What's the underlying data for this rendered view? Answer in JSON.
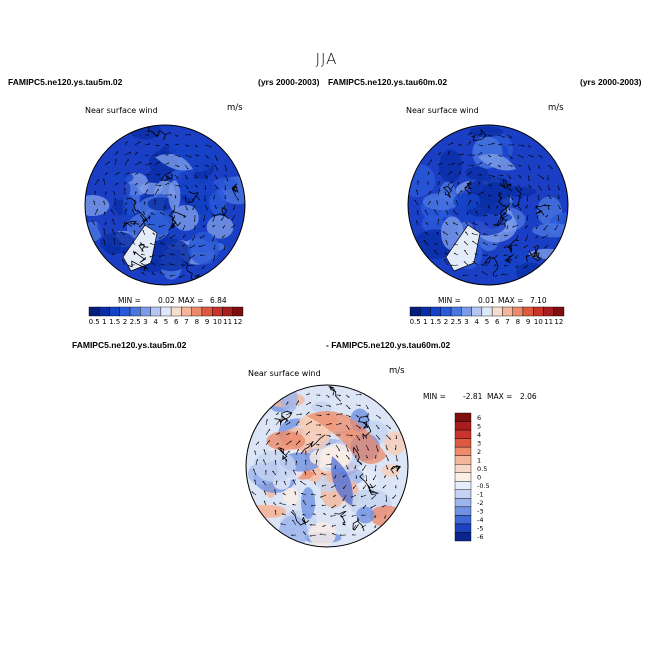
{
  "title": "JJA",
  "panels": [
    {
      "case_label": "FAMIPC5.ne120.ys.tau5m.02",
      "years_label": "(yrs 2000-2003)",
      "var_label": "Near surface wind",
      "units": "m/s",
      "min_label": "MIN =",
      "min_value": "0.02",
      "max_label": "MAX =",
      "max_value": "6.84"
    },
    {
      "case_label": "FAMIPC5.ne120.ys.tau60m.02",
      "years_label": "(yrs 2000-2003)",
      "var_label": "Near surface wind",
      "units": "m/s",
      "min_label": "MIN =",
      "min_value": "0.01",
      "max_label": "MAX =",
      "max_value": "7.10"
    },
    {
      "case_label": "FAMIPC5.ne120.ys.tau5m.02",
      "case_label_b": "- FAMIPC5.ne120.ys.tau60m.02",
      "var_label": "Near surface wind",
      "units": "m/s",
      "min_label": "MIN =",
      "min_value": "-2.81",
      "max_label": "MAX =",
      "max_value": "2.06"
    }
  ],
  "chart_data": [
    {
      "type": "heatmap",
      "title": "FAMIPC5.ne120.ys.tau5m.02",
      "subtitle": "Near surface wind",
      "units": "m/s",
      "min": 0.02,
      "max": 6.84,
      "colorbar_levels": [
        "0.5",
        "1",
        "1.5",
        "2",
        "2.5",
        "3",
        "4",
        "5",
        "6",
        "7",
        "8",
        "9",
        "10",
        "11",
        "12"
      ],
      "colorbar_colors": [
        "#081d7a",
        "#0a2ea6",
        "#1543c8",
        "#2b5ad8",
        "#4a76e0",
        "#7d9ce8",
        "#b3c6f1",
        "#dfe8f8",
        "#f6ddcf",
        "#f4b79c",
        "#ec8a6a",
        "#dd5a40",
        "#c9342a",
        "#a81d1d",
        "#7d0f0f"
      ]
    },
    {
      "type": "heatmap",
      "title": "FAMIPC5.ne120.ys.tau60m.02",
      "subtitle": "Near surface wind",
      "units": "m/s",
      "min": 0.01,
      "max": 7.1,
      "colorbar_levels": [
        "0.5",
        "1",
        "1.5",
        "2",
        "2.5",
        "3",
        "4",
        "5",
        "6",
        "7",
        "8",
        "9",
        "10",
        "11",
        "12"
      ],
      "colorbar_colors": [
        "#081d7a",
        "#0a2ea6",
        "#1543c8",
        "#2b5ad8",
        "#4a76e0",
        "#7d9ce8",
        "#b3c6f1",
        "#dfe8f8",
        "#f6ddcf",
        "#f4b79c",
        "#ec8a6a",
        "#dd5a40",
        "#c9342a",
        "#a81d1d",
        "#7d0f0f"
      ]
    },
    {
      "type": "heatmap",
      "title": "FAMIPC5.ne120.ys.tau5m.02 - FAMIPC5.ne120.ys.tau60m.02",
      "subtitle": "Near surface wind",
      "units": "m/s",
      "min": -2.81,
      "max": 2.06,
      "colorbar_levels": [
        "6",
        "5",
        "4",
        "3",
        "2",
        "1",
        "0.5",
        "0",
        "-0.5",
        "-1",
        "-2",
        "-3",
        "-4",
        "-5",
        "-6"
      ],
      "colorbar_colors": [
        "#7d0f0f",
        "#a81d1d",
        "#c9342a",
        "#dd5a40",
        "#ec8a6a",
        "#f4b79c",
        "#f9d7c6",
        "#fbeee6",
        "#e6ecf9",
        "#c4d3f3",
        "#9db5ec",
        "#6f92e2",
        "#3f67d6",
        "#1c42be",
        "#0a2490"
      ]
    }
  ]
}
